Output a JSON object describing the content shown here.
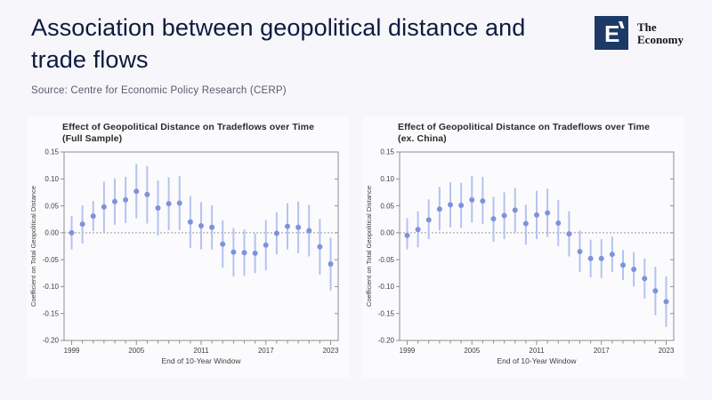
{
  "page": {
    "title": "Association between geopolitical distance and trade flows",
    "source": "Source: Centre for Economic Policy Research (CERP)"
  },
  "logo": {
    "mark": "E",
    "text_line1": "The",
    "text_line2": "Economy",
    "square_color": "#1d3966"
  },
  "colors": {
    "page_background": "#f7f6fb",
    "panel_background": "#fbfbfe",
    "title_navy": "#0d1b3e",
    "source_gray": "#565b70",
    "chart_title": "#2b2b2b",
    "axis": "#8f8f8f",
    "tick_label": "#3f3f3f",
    "zero_line": "#9a9a9a",
    "point": "#7e92dc",
    "ci_bar": "#b6c2ef"
  },
  "chart_data": [
    {
      "type": "scatter",
      "title": "Effect of Geopolitical Distance on Tradeflows over Time (Full Sample)",
      "title_line1": "Effect of Geopolitical Distance on Tradeflows over Time",
      "title_line2": "(Full Sample)",
      "xlabel": "End of 10-Year Window",
      "ylabel": "Coefficient on Total Geopolitical Distance",
      "ylim": [
        -0.2,
        0.15
      ],
      "yticks": [
        0.15,
        0.1,
        0.05,
        0.0,
        -0.05,
        -0.1,
        -0.15,
        -0.2
      ],
      "xticks_labeled": [
        1999,
        2005,
        2011,
        2017,
        2023
      ],
      "zero_line": true,
      "grid": false,
      "legend": "none",
      "x": [
        1999,
        2000,
        2001,
        2002,
        2003,
        2004,
        2005,
        2006,
        2007,
        2008,
        2009,
        2010,
        2011,
        2012,
        2013,
        2014,
        2015,
        2016,
        2017,
        2018,
        2019,
        2020,
        2021,
        2022,
        2023
      ],
      "values": [
        0.0,
        0.016,
        0.031,
        0.048,
        0.058,
        0.061,
        0.077,
        0.071,
        0.046,
        0.054,
        0.055,
        0.02,
        0.013,
        0.01,
        -0.021,
        -0.036,
        -0.037,
        -0.038,
        -0.023,
        -0.001,
        0.012,
        0.01,
        0.004,
        -0.026,
        -0.058
      ],
      "ci_low": [
        -0.031,
        -0.02,
        0.003,
        0.001,
        0.015,
        0.018,
        0.027,
        0.017,
        -0.005,
        0.005,
        0.005,
        -0.028,
        -0.031,
        -0.031,
        -0.065,
        -0.081,
        -0.08,
        -0.075,
        -0.07,
        -0.04,
        -0.031,
        -0.038,
        -0.044,
        -0.078,
        -0.107
      ],
      "ci_high": [
        0.031,
        0.051,
        0.059,
        0.095,
        0.101,
        0.104,
        0.128,
        0.124,
        0.097,
        0.103,
        0.105,
        0.068,
        0.057,
        0.051,
        0.023,
        0.009,
        0.006,
        -0.001,
        0.024,
        0.038,
        0.055,
        0.058,
        0.052,
        0.026,
        -0.009
      ]
    },
    {
      "type": "scatter",
      "title": "Effect of Geopolitical Distance on Tradeflows over Time (ex. China)",
      "title_line1": "Effect of Geopolitical Distance on Tradeflows over Time",
      "title_line2": "(ex. China)",
      "xlabel": "End of 10-Year Window",
      "ylabel": "Coefficient on Total Geopolitical Distance",
      "ylim": [
        -0.2,
        0.15
      ],
      "yticks": [
        0.15,
        0.1,
        0.05,
        0.0,
        -0.05,
        -0.1,
        -0.15,
        -0.2
      ],
      "xticks_labeled": [
        1999,
        2005,
        2011,
        2017,
        2023
      ],
      "zero_line": true,
      "grid": false,
      "legend": "none",
      "x": [
        1999,
        2000,
        2001,
        2002,
        2003,
        2004,
        2005,
        2006,
        2007,
        2008,
        2009,
        2010,
        2011,
        2012,
        2013,
        2014,
        2015,
        2016,
        2017,
        2018,
        2019,
        2020,
        2021,
        2022,
        2023
      ],
      "values": [
        -0.005,
        0.006,
        0.024,
        0.044,
        0.052,
        0.051,
        0.061,
        0.059,
        0.026,
        0.032,
        0.042,
        0.017,
        0.033,
        0.037,
        0.018,
        -0.002,
        -0.035,
        -0.048,
        -0.048,
        -0.04,
        -0.06,
        -0.068,
        -0.085,
        -0.108,
        -0.128
      ],
      "ci_low": [
        -0.031,
        -0.027,
        -0.012,
        0.004,
        0.01,
        0.009,
        0.019,
        0.016,
        -0.017,
        -0.012,
        0.001,
        -0.022,
        -0.012,
        -0.008,
        -0.025,
        -0.044,
        -0.073,
        -0.083,
        -0.084,
        -0.073,
        -0.088,
        -0.1,
        -0.122,
        -0.153,
        -0.175
      ],
      "ci_high": [
        0.027,
        0.04,
        0.062,
        0.085,
        0.094,
        0.093,
        0.106,
        0.104,
        0.067,
        0.075,
        0.083,
        0.052,
        0.078,
        0.082,
        0.061,
        0.04,
        0.004,
        -0.013,
        -0.012,
        -0.007,
        -0.032,
        -0.036,
        -0.048,
        -0.063,
        -0.081
      ]
    }
  ]
}
